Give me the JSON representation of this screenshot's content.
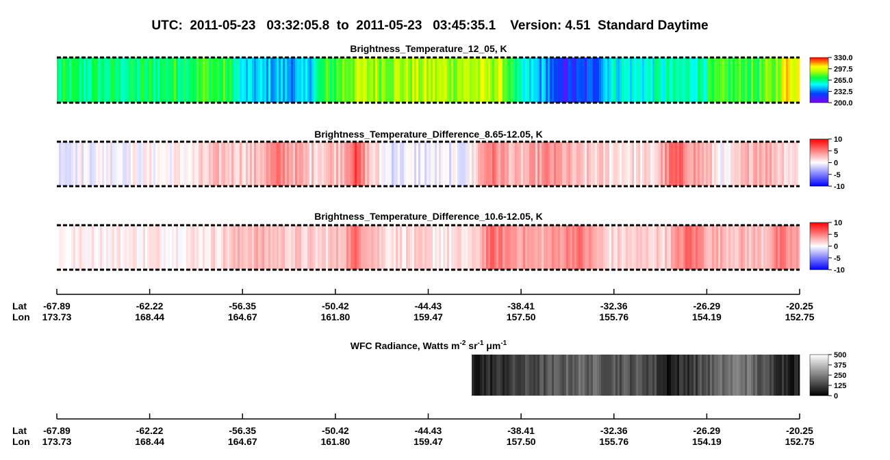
{
  "title": "UTC:  2011-05-23   03:32:05.8  to  2011-05-23   03:45:35.1    Version: 4.51  Standard Daytime",
  "panels": [
    {
      "title": "Brightness_Temperature_12_05, K",
      "colorbar": [
        "330.0",
        "297.5",
        "265.0",
        "232.5",
        "200.0"
      ]
    },
    {
      "title": "Brightness_Temperature_Difference_8.65-12.05, K",
      "colorbar": [
        "10",
        "5",
        "0",
        "-5",
        "-10"
      ]
    },
    {
      "title": "Brightness_Temperature_Difference_10.6-12.05, K",
      "colorbar": [
        "10",
        "5",
        "0",
        "-5",
        "-10"
      ]
    }
  ],
  "wfc": {
    "title": [
      "WFC Radiance, Watts m",
      "-2",
      " sr",
      "-1",
      " μm",
      "-1"
    ],
    "colorbar": [
      "500",
      "375",
      "250",
      "125",
      "0"
    ]
  },
  "axes": [
    {
      "lat_label": "Lat",
      "lon_label": "Lon",
      "lat": [
        "-67.89",
        "-62.22",
        "-56.35",
        "-50.42",
        "-44.43",
        "-38.41",
        "-32.36",
        "-26.29",
        "-20.25"
      ],
      "lon": [
        "173.73",
        "168.44",
        "164.67",
        "161.80",
        "159.47",
        "157.50",
        "155.76",
        "154.19",
        "152.75"
      ]
    },
    {
      "lat_label": "Lat",
      "lon_label": "Lon",
      "lat": [
        "-67.89",
        "-62.22",
        "-56.35",
        "-50.42",
        "-44.43",
        "-38.41",
        "-32.36",
        "-26.29",
        "-20.25"
      ],
      "lon": [
        "173.73",
        "168.44",
        "164.67",
        "161.80",
        "159.47",
        "157.50",
        "155.76",
        "154.19",
        "152.75"
      ]
    }
  ]
}
